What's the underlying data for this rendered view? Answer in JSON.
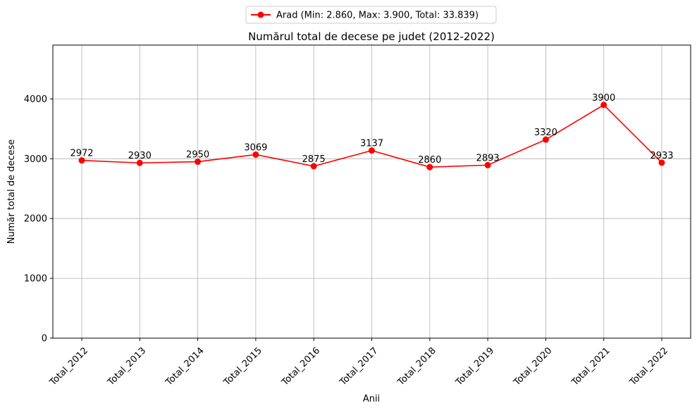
{
  "chart_data": {
    "type": "line",
    "title": "Numărul total de decese pe judet (2012-2022)",
    "xlabel": "Anii",
    "ylabel": "Număr total de decese",
    "categories": [
      "Total_2012",
      "Total_2013",
      "Total_2014",
      "Total_2015",
      "Total_2016",
      "Total_2017",
      "Total_2018",
      "Total_2019",
      "Total_2020",
      "Total_2021",
      "Total_2022"
    ],
    "series": [
      {
        "name": "Arad (Min: 2.860, Max: 3.900, Total: 33.839)",
        "values": [
          2972,
          2930,
          2950,
          3069,
          2875,
          3137,
          2860,
          2893,
          3320,
          3900,
          2933
        ],
        "color": "#ff0000"
      }
    ],
    "ylim": [
      0,
      4900
    ],
    "yticks": [
      0,
      1000,
      2000,
      3000,
      4000
    ],
    "grid": true,
    "legend_position": "top-center"
  }
}
